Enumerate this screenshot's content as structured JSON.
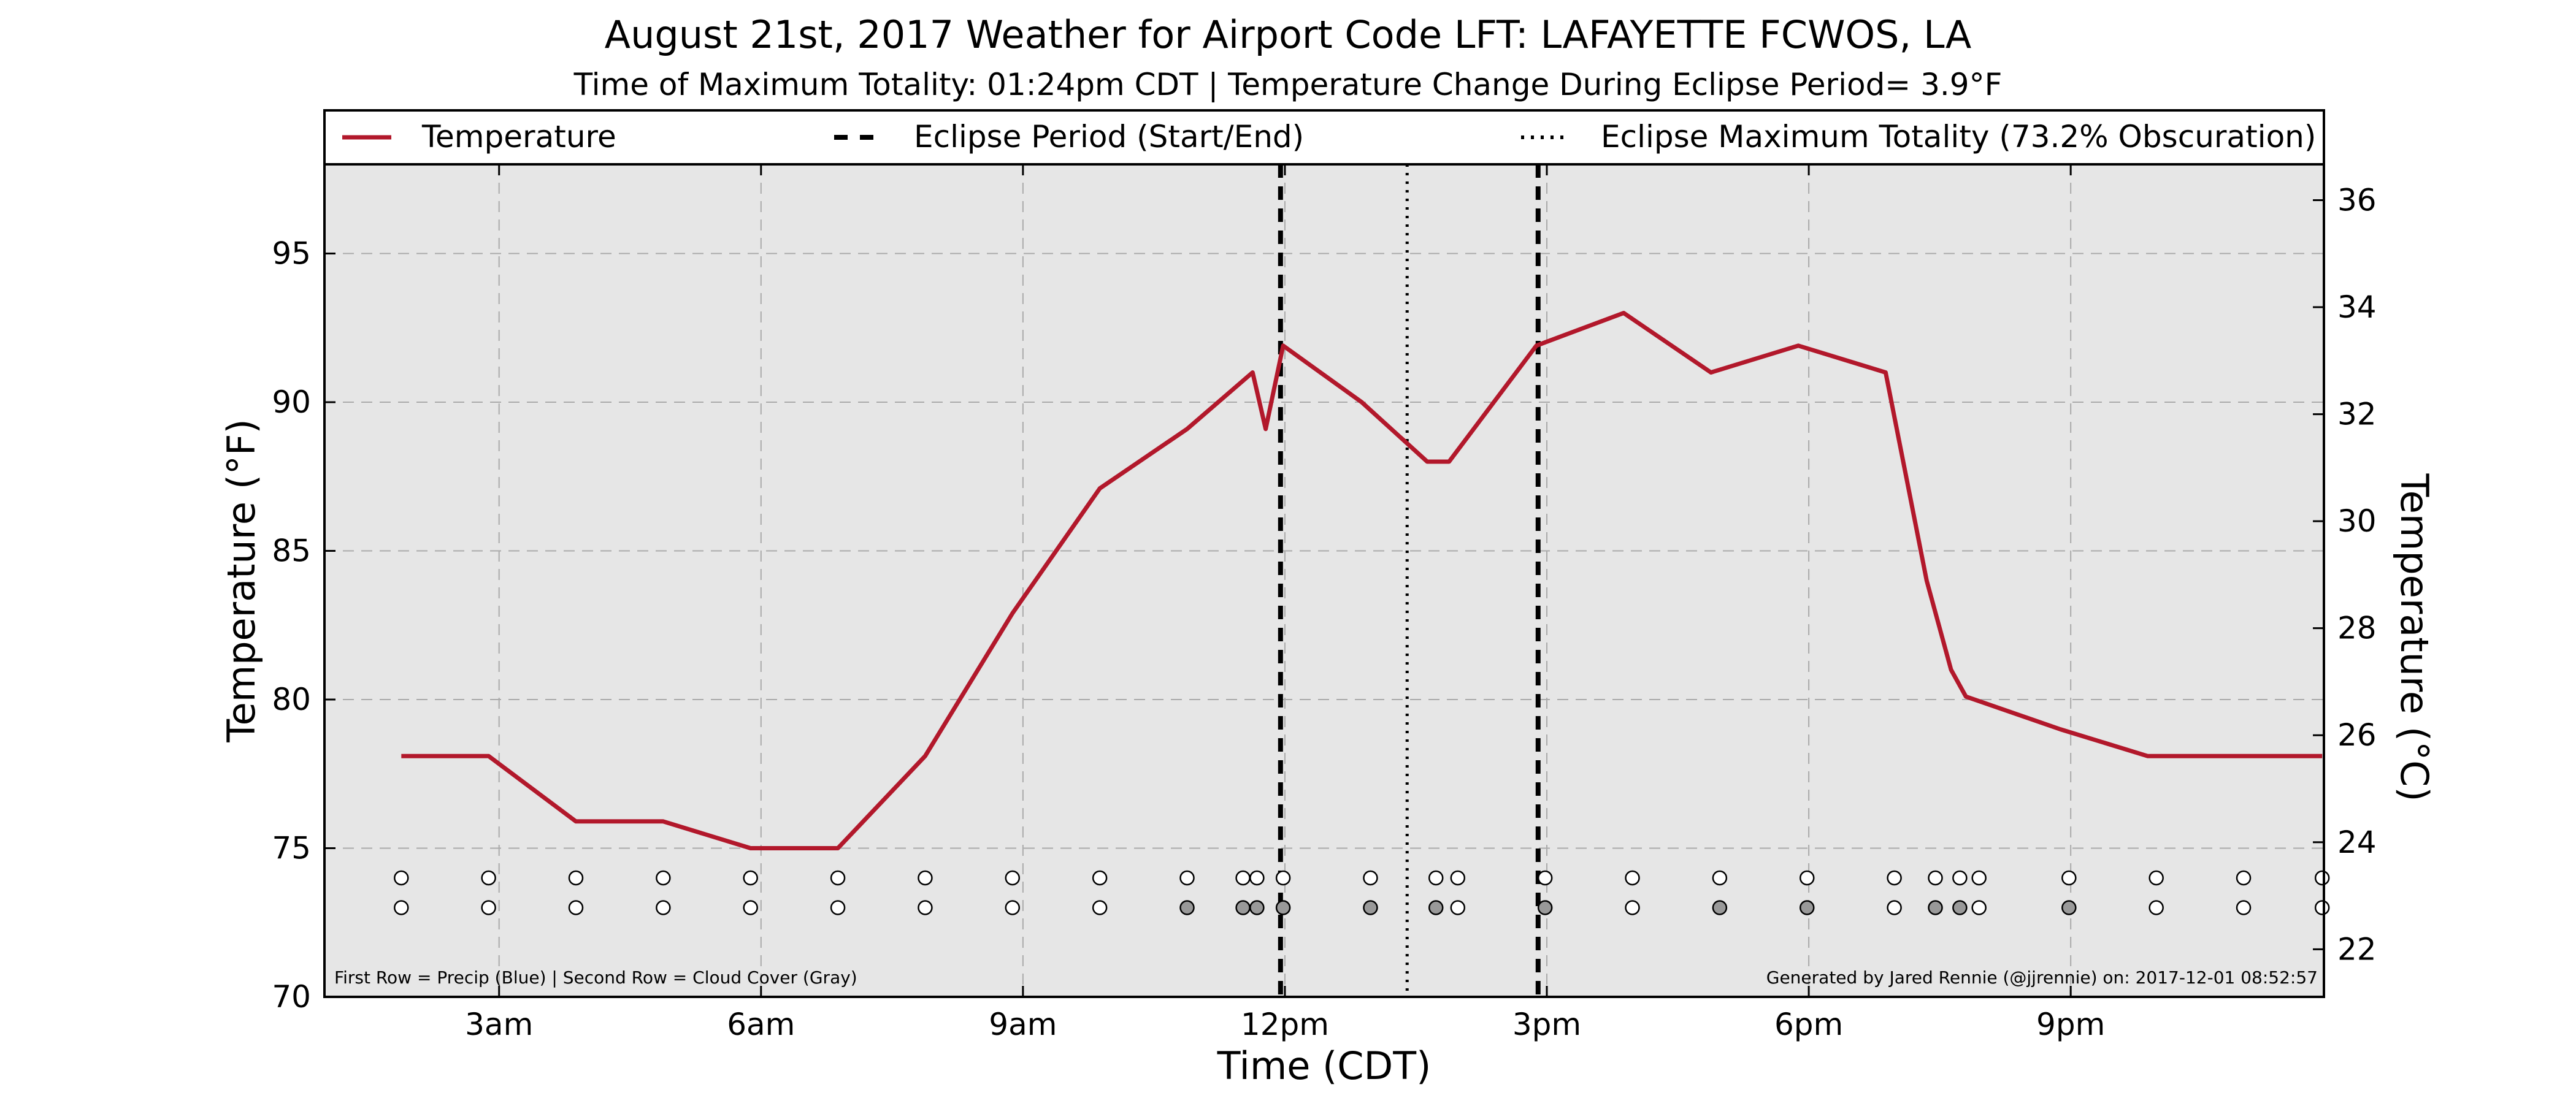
{
  "chart_data": {
    "type": "line",
    "title": "August 21st, 2017 Weather for Airport Code LFT: LAFAYETTE FCWOS, LA",
    "subtitle": "Time of Maximum Totality: 01:24pm CDT | Temperature Change During Eclipse Period= 3.9°F",
    "xlabel": "Time (CDT)",
    "ylabel": "Temperature (°F)",
    "y2label": "Temperature (°C)",
    "xlim": [
      1.0,
      23.9
    ],
    "ylim": [
      70,
      98
    ],
    "y2lim": [
      21.11,
      36.67
    ],
    "grid": true,
    "legend_position": "top",
    "x_ticks": [
      {
        "x": 3,
        "label": "3am"
      },
      {
        "x": 6,
        "label": "6am"
      },
      {
        "x": 9,
        "label": "9am"
      },
      {
        "x": 12,
        "label": "12pm"
      },
      {
        "x": 15,
        "label": "3pm"
      },
      {
        "x": 18,
        "label": "6pm"
      },
      {
        "x": 21,
        "label": "9pm"
      }
    ],
    "y_ticks": [
      70,
      75,
      80,
      85,
      90,
      95
    ],
    "y2_ticks": [
      22,
      24,
      26,
      28,
      30,
      32,
      34,
      36
    ],
    "series": [
      {
        "name": "Temperature",
        "color": "#b2182b",
        "x": [
          1.88,
          2.88,
          3.88,
          4.88,
          5.88,
          6.88,
          7.88,
          8.88,
          9.88,
          10.88,
          11.63,
          11.78,
          11.98,
          12.88,
          13.63,
          13.88,
          14.88,
          15.88,
          16.88,
          17.88,
          18.88,
          19.35,
          19.63,
          19.8,
          20.88,
          21.88,
          22.88,
          23.88
        ],
        "y": [
          78.1,
          78.1,
          75.9,
          75.9,
          75.0,
          75.0,
          78.1,
          82.9,
          87.1,
          89.1,
          91.0,
          89.1,
          91.9,
          90.0,
          88.0,
          88.0,
          91.9,
          93.0,
          91.0,
          91.9,
          91.0,
          84.0,
          81.0,
          80.1,
          79.0,
          78.1,
          78.1,
          78.1
        ]
      }
    ],
    "eclipse_start": 11.95,
    "eclipse_end": 14.9,
    "eclipse_max": 13.4,
    "legend": {
      "temperature": "Temperature",
      "eclipse_period": "Eclipse Period (Start/End)",
      "eclipse_max": "Eclipse Maximum Totality (73.2% Obscuration)"
    },
    "obs_rows": {
      "precip_y": 74.0,
      "cloud_y": 73.0,
      "precip": [
        {
          "x": 1.88,
          "c": "#ffffff"
        },
        {
          "x": 2.88,
          "c": "#ffffff"
        },
        {
          "x": 3.88,
          "c": "#ffffff"
        },
        {
          "x": 4.88,
          "c": "#ffffff"
        },
        {
          "x": 5.88,
          "c": "#ffffff"
        },
        {
          "x": 6.88,
          "c": "#ffffff"
        },
        {
          "x": 7.88,
          "c": "#ffffff"
        },
        {
          "x": 8.88,
          "c": "#ffffff"
        },
        {
          "x": 9.88,
          "c": "#ffffff"
        },
        {
          "x": 10.88,
          "c": "#ffffff"
        },
        {
          "x": 11.52,
          "c": "#ffffff"
        },
        {
          "x": 11.68,
          "c": "#ffffff"
        },
        {
          "x": 11.98,
          "c": "#ffffff"
        },
        {
          "x": 12.98,
          "c": "#ffffff"
        },
        {
          "x": 13.73,
          "c": "#ffffff"
        },
        {
          "x": 13.98,
          "c": "#ffffff"
        },
        {
          "x": 14.98,
          "c": "#ffffff"
        },
        {
          "x": 15.98,
          "c": "#ffffff"
        },
        {
          "x": 16.98,
          "c": "#ffffff"
        },
        {
          "x": 17.98,
          "c": "#ffffff"
        },
        {
          "x": 18.98,
          "c": "#ffffff"
        },
        {
          "x": 19.45,
          "c": "#ffffff"
        },
        {
          "x": 19.73,
          "c": "#ffffff"
        },
        {
          "x": 19.95,
          "c": "#ffffff"
        },
        {
          "x": 20.98,
          "c": "#ffffff"
        },
        {
          "x": 21.98,
          "c": "#ffffff"
        },
        {
          "x": 22.98,
          "c": "#ffffff"
        },
        {
          "x": 23.88,
          "c": "#ffffff"
        }
      ],
      "cloud": [
        {
          "x": 1.88,
          "c": "#ffffff"
        },
        {
          "x": 2.88,
          "c": "#ffffff"
        },
        {
          "x": 3.88,
          "c": "#ffffff"
        },
        {
          "x": 4.88,
          "c": "#ffffff"
        },
        {
          "x": 5.88,
          "c": "#ffffff"
        },
        {
          "x": 6.88,
          "c": "#ffffff"
        },
        {
          "x": 7.88,
          "c": "#ffffff"
        },
        {
          "x": 8.88,
          "c": "#ffffff"
        },
        {
          "x": 9.88,
          "c": "#ffffff"
        },
        {
          "x": 10.88,
          "c": "#999999"
        },
        {
          "x": 11.52,
          "c": "#999999"
        },
        {
          "x": 11.68,
          "c": "#999999"
        },
        {
          "x": 11.98,
          "c": "#999999"
        },
        {
          "x": 12.98,
          "c": "#999999"
        },
        {
          "x": 13.73,
          "c": "#999999"
        },
        {
          "x": 13.98,
          "c": "#ffffff"
        },
        {
          "x": 14.98,
          "c": "#999999"
        },
        {
          "x": 15.98,
          "c": "#ffffff"
        },
        {
          "x": 16.98,
          "c": "#999999"
        },
        {
          "x": 17.98,
          "c": "#999999"
        },
        {
          "x": 18.98,
          "c": "#ffffff"
        },
        {
          "x": 19.45,
          "c": "#999999"
        },
        {
          "x": 19.73,
          "c": "#999999"
        },
        {
          "x": 19.95,
          "c": "#ffffff"
        },
        {
          "x": 20.98,
          "c": "#999999"
        },
        {
          "x": 21.98,
          "c": "#ffffff"
        },
        {
          "x": 22.98,
          "c": "#ffffff"
        },
        {
          "x": 23.88,
          "c": "#ffffff"
        }
      ]
    },
    "footnote_left": "First Row = Precip (Blue) | Second Row = Cloud Cover (Gray)",
    "footnote_right": "Generated by Jared Rennie (@jjrennie) on: 2017-12-01 08:52:57"
  }
}
